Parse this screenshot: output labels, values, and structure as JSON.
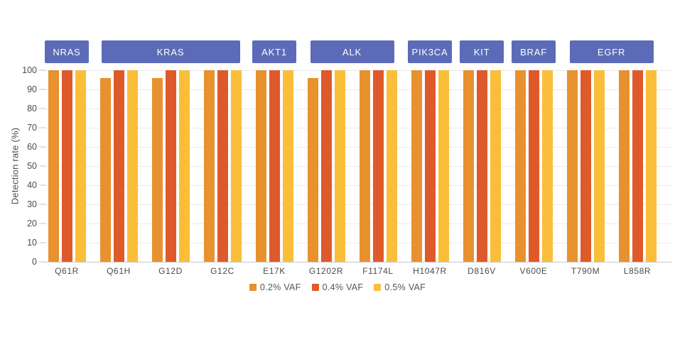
{
  "chart_data": {
    "type": "bar",
    "title": "",
    "xlabel": "",
    "ylabel": "Detection rate (%)",
    "ylim": [
      0,
      100
    ],
    "ytick_step": 10,
    "grid": true,
    "legend_position": "bottom",
    "categories": [
      "Q61R",
      "Q61H",
      "G12D",
      "G12C",
      "E17K",
      "G1202R",
      "F1174L",
      "H1047R",
      "D816V",
      "V600E",
      "T790M",
      "L858R"
    ],
    "series": [
      {
        "name": "0.2% VAF",
        "color": "#E8912F",
        "values": [
          100,
          96,
          96,
          100,
          100,
          96,
          100,
          100,
          100,
          100,
          100,
          100
        ]
      },
      {
        "name": "0.4% VAF",
        "color": "#DE5A2B",
        "values": [
          100,
          100,
          100,
          100,
          100,
          100,
          100,
          100,
          100,
          100,
          100,
          100
        ]
      },
      {
        "name": "0.5% VAF",
        "color": "#FABE38",
        "values": [
          100,
          100,
          100,
          100,
          100,
          100,
          100,
          100,
          100,
          100,
          100,
          100
        ]
      }
    ],
    "gene_groups": [
      {
        "label": "NRAS",
        "start": 0,
        "span": 1
      },
      {
        "label": "KRAS",
        "start": 1,
        "span": 3
      },
      {
        "label": "AKT1",
        "start": 4,
        "span": 1
      },
      {
        "label": "ALK",
        "start": 5,
        "span": 2
      },
      {
        "label": "PIK3CA",
        "start": 7,
        "span": 1
      },
      {
        "label": "KIT",
        "start": 8,
        "span": 1
      },
      {
        "label": "BRAF",
        "start": 9,
        "span": 1
      },
      {
        "label": "EGFR",
        "start": 10,
        "span": 2
      }
    ],
    "colors": {
      "gene_box_bg": "#5C6BB7",
      "gene_box_text": "#FFFFFF",
      "gridline": "#EAEAEA",
      "axis_line": "#C9C9C9",
      "tick_text": "#4D4D4D"
    }
  }
}
